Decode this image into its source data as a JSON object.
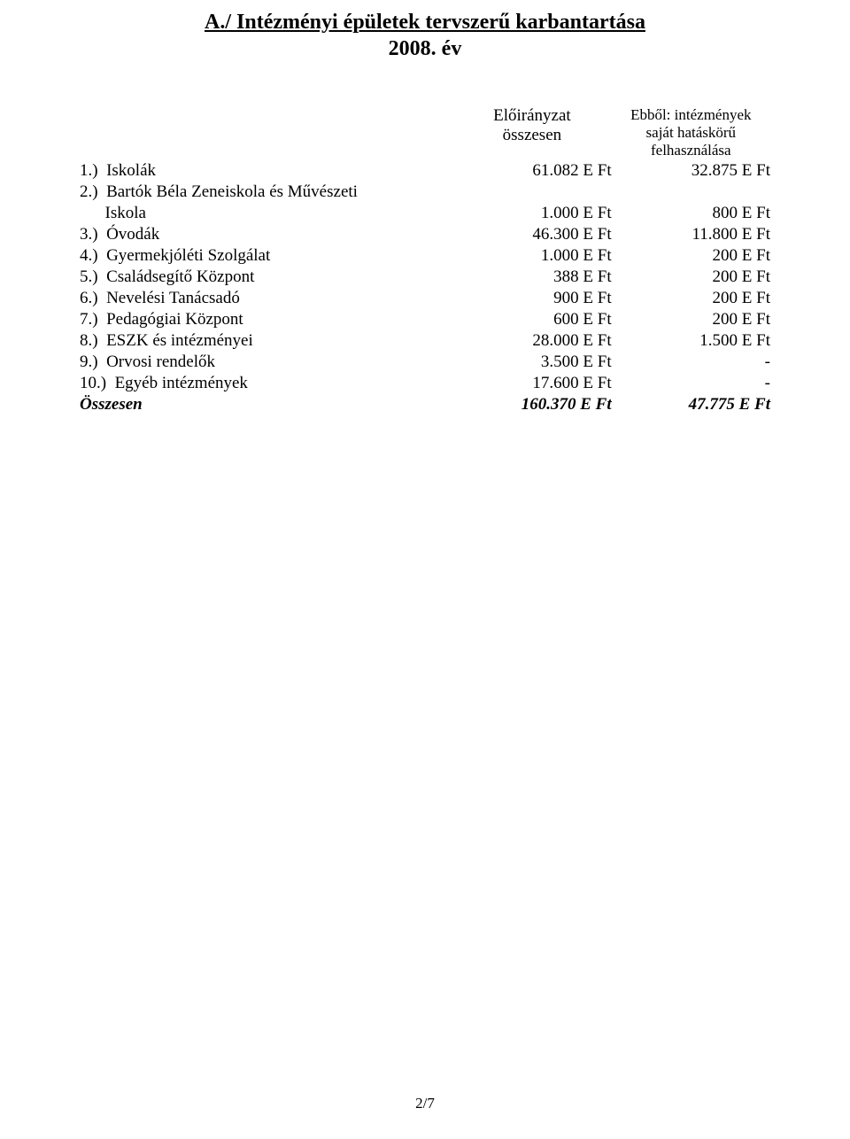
{
  "title": "A./ Intézményi épületek tervszerű karbantartása",
  "subtitle": "2008. év",
  "header": {
    "col2_line1": "Előirányzat",
    "col2_line2": "összesen",
    "col3_line1": "Ebből: intézmények",
    "col3_line2": "saját hatáskörű",
    "col3_line3": "felhasználása"
  },
  "rows": [
    {
      "num": "1.)",
      "label": "Iskolák",
      "v1": "61.082 E Ft",
      "v2": "32.875 E Ft"
    },
    {
      "num": "2.)",
      "label": "Bartók Béla Zeneiskola és Művészeti",
      "v1": "",
      "v2": ""
    },
    {
      "num": "",
      "label": "Iskola",
      "v1": "1.000 E Ft",
      "v2": "800 E Ft"
    },
    {
      "num": "3.)",
      "label": "Óvodák",
      "v1": "46.300 E Ft",
      "v2": "11.800 E Ft"
    },
    {
      "num": "4.)",
      "label": "Gyermekjóléti Szolgálat",
      "v1": "1.000 E Ft",
      "v2": "200 E Ft"
    },
    {
      "num": "5.)",
      "label": "Családsegítő Központ",
      "v1": "388 E Ft",
      "v2": "200 E Ft"
    },
    {
      "num": "6.)",
      "label": "Nevelési Tanácsadó",
      "v1": "900 E Ft",
      "v2": "200 E Ft"
    },
    {
      "num": "7.)",
      "label": "Pedagógiai Központ",
      "v1": "600 E Ft",
      "v2": "200 E Ft"
    },
    {
      "num": "8.)",
      "label": "ESZK és intézményei",
      "v1": "28.000 E Ft",
      "v2": "1.500 E Ft"
    },
    {
      "num": "9.)",
      "label": "Orvosi rendelők",
      "v1": "3.500 E Ft",
      "v2": "-"
    },
    {
      "num": "10.)",
      "label": "Egyéb intézmények",
      "v1": "17.600 E Ft",
      "v2": "-"
    }
  ],
  "sum": {
    "label": "Összesen",
    "v1": "160.370 E Ft",
    "v2": "47.775 E Ft"
  },
  "footer": "2/7"
}
